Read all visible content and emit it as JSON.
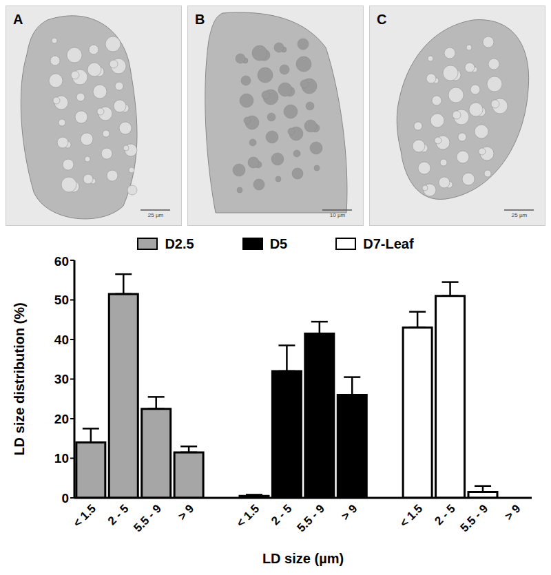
{
  "panels": [
    {
      "label": "A",
      "scale_bar": "25 µm"
    },
    {
      "label": "B",
      "scale_bar": "10 µm"
    },
    {
      "label": "C",
      "scale_bar": "25 µm"
    }
  ],
  "chart_data": {
    "type": "bar",
    "categories": [
      "< 1.5",
      "2 - 5",
      "5.5 - 9",
      "> 9",
      null,
      "< 1.5",
      "2 - 5",
      "5.5 - 9",
      "> 9",
      null,
      "< 1.5",
      "2 - 5",
      "5.5 - 9",
      "> 9"
    ],
    "series": [
      {
        "name": "D2.5",
        "color": "#a6a6a6",
        "values": [
          14,
          51.5,
          22.5,
          11.5,
          null,
          null,
          null,
          null,
          null,
          null,
          null,
          null,
          null,
          null
        ],
        "errors": [
          3.5,
          5,
          3,
          1.5,
          null,
          null,
          null,
          null,
          null,
          null,
          null,
          null,
          null,
          null
        ]
      },
      {
        "name": "D5",
        "color": "#000000",
        "values": [
          null,
          null,
          null,
          null,
          null,
          0.5,
          32,
          41.5,
          26,
          null,
          null,
          null,
          null,
          null
        ],
        "errors": [
          null,
          null,
          null,
          null,
          null,
          0.3,
          6.5,
          3,
          4.5,
          null,
          null,
          null,
          null,
          null
        ]
      },
      {
        "name": "D7-Leaf",
        "color": "#ffffff",
        "values": [
          null,
          null,
          null,
          null,
          null,
          null,
          null,
          null,
          null,
          null,
          43,
          51,
          1.5,
          0
        ],
        "errors": [
          null,
          null,
          null,
          null,
          null,
          null,
          null,
          null,
          null,
          null,
          4,
          3.5,
          1.5,
          0
        ]
      }
    ],
    "ylim": [
      0,
      60
    ],
    "yticks": [
      0,
      10,
      20,
      30,
      40,
      50,
      60
    ],
    "y_label": "LD size distribution (%)",
    "x_label": "LD size (µm)",
    "legend": "top"
  }
}
